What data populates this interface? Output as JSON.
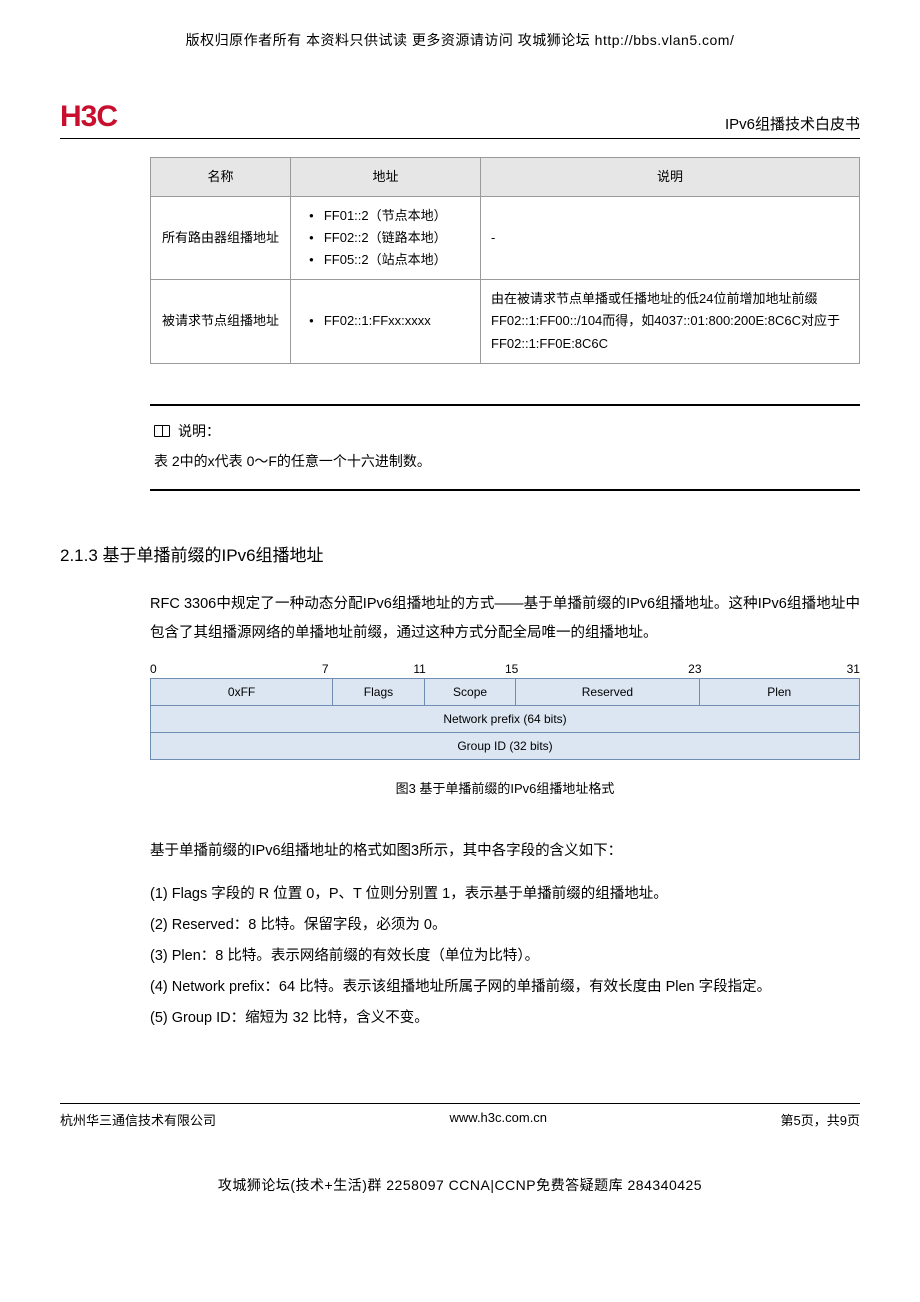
{
  "top_notice": "版权归原作者所有 本资料只供试读 更多资源请访问 攻城狮论坛 http://bbs.vlan5.com/",
  "logo_text": "H3C",
  "doc_title": "IPv6组播技术白皮书",
  "table": {
    "headers": [
      "名称",
      "地址",
      "说明"
    ],
    "rows": [
      {
        "name": "所有路由器组播地址",
        "addrs": [
          "FF01::2（节点本地）",
          "FF02::2（链路本地）",
          "FF05::2（站点本地）"
        ],
        "desc": "-"
      },
      {
        "name": "被请求节点组播地址",
        "addrs": [
          "FF02::1:FFxx:xxxx"
        ],
        "desc": "由在被请求节点单播或任播地址的低24位前增加地址前缀FF02::1:FF00::/104而得，如4037::01:800:200E:8C6C对应于FF02::1:FF0E:8C6C"
      }
    ]
  },
  "note": {
    "label": "说明：",
    "text": "表 2中的x代表 0～F的任意一个十六进制数。"
  },
  "section_heading": "2.1.3  基于单播前缀的IPv6组播地址",
  "intro_para": "RFC 3306中规定了一种动态分配IPv6组播地址的方式——基于单播前缀的IPv6组播地址。这种IPv6组播地址中包含了其组播源网络的单播地址前缀，通过这种方式分配全局唯一的组播地址。",
  "bitfield": {
    "ticks": [
      {
        "label": "0",
        "width_pct": 24.2
      },
      {
        "label": "7",
        "width_pct": 12.9
      },
      {
        "label": "11",
        "width_pct": 12.9
      },
      {
        "label": "15",
        "width_pct": 25.8
      },
      {
        "label": "23",
        "width_pct": 22.2
      },
      {
        "label": "31",
        "width_pct": 2.0
      }
    ],
    "row1": [
      {
        "label": "0xFF",
        "width_pct": 25.8
      },
      {
        "label": "Flags",
        "width_pct": 12.9
      },
      {
        "label": "Scope",
        "width_pct": 12.9
      },
      {
        "label": "Reserved",
        "width_pct": 25.8
      },
      {
        "label": "Plen",
        "width_pct": 22.6
      }
    ],
    "row2": [
      {
        "label": "Network prefix (64 bits)",
        "width_pct": 100
      }
    ],
    "row3": [
      {
        "label": "Group ID (32 bits)",
        "width_pct": 100
      }
    ],
    "colors": {
      "cell_bg": "#dbe6f2",
      "cell_border": "#6f8db3",
      "text": "#000000"
    },
    "fontsize_label": 12,
    "fontsize_tick": 12
  },
  "fig_caption": "图3  基于单播前缀的IPv6组播地址格式",
  "after_fig_para": "基于单播前缀的IPv6组播地址的格式如图3所示，其中各字段的含义如下：",
  "field_list": [
    "(1)   Flags 字段的 R 位置 0，P、T 位则分别置 1，表示基于单播前缀的组播地址。",
    "(2)   Reserved：8 比特。保留字段，必须为 0。",
    "(3)   Plen：8 比特。表示网络前缀的有效长度（单位为比特）。",
    "(4)   Network prefix：64 比特。表示该组播地址所属子网的单播前缀，有效长度由 Plen 字段指定。",
    "(5)   Group ID：缩短为 32 比特，含义不变。"
  ],
  "footer": {
    "left": "杭州华三通信技术有限公司",
    "center": "www.h3c.com.cn",
    "right": "第5页，共9页"
  },
  "bottom_notice": "攻城狮论坛(技术+生活)群 2258097 CCNA|CCNP免费答疑题库 284340425"
}
